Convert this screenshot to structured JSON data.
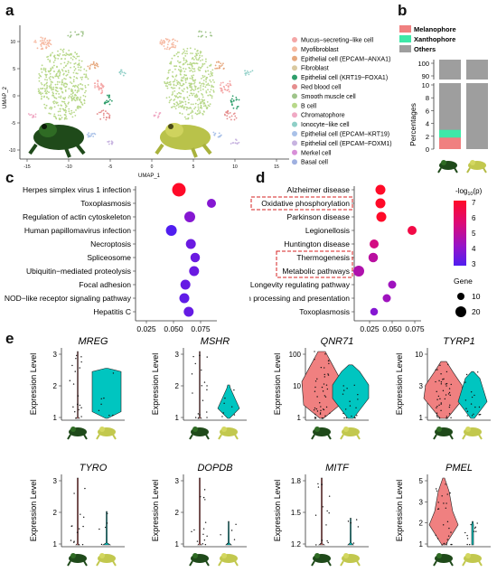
{
  "panels": {
    "a": "a",
    "b": "b",
    "c": "c",
    "d": "d",
    "e": "e"
  },
  "umap": {
    "xlabel": "UMAP_1",
    "ylabel": "UMAP_2",
    "xticks": [
      "-15",
      "-10",
      "-5",
      "0",
      "5",
      "10",
      "15"
    ],
    "yticks": [
      "-10",
      "-5",
      "0",
      "5",
      "10"
    ],
    "legend": [
      {
        "label": "Mucus−secreting−like cell",
        "color": "#f4a6a6"
      },
      {
        "label": "Myofibroblast",
        "color": "#f6b8a0"
      },
      {
        "label": "Epithelial cell (EPCAM−ANXA1)",
        "color": "#e6a87e"
      },
      {
        "label": "Fibroblast",
        "color": "#d9c9a0"
      },
      {
        "label": "Epithelial cell (KRT19−FOXA1)",
        "color": "#2e9e6b"
      },
      {
        "label": "Red blood cell",
        "color": "#e58e8e"
      },
      {
        "label": "Smooth muscle cell",
        "color": "#9fc48a"
      },
      {
        "label": "B cell",
        "color": "#b8d88a"
      },
      {
        "label": "Chromatophore",
        "color": "#f0a9c4"
      },
      {
        "label": "Ionocyte−like cell",
        "color": "#8fcfc7"
      },
      {
        "label": "Epithelial cell (EPCAM−KRT19)",
        "color": "#a9c1e8"
      },
      {
        "label": "Epithelial cell (EPCAM−FOXM1)",
        "color": "#c7b3e0"
      },
      {
        "label": "Merkel cell",
        "color": "#d88fd8"
      },
      {
        "label": "Basal cell",
        "color": "#9fb0e0"
      }
    ]
  },
  "chart_data": [
    {
      "type": "bar",
      "panel": "b",
      "ylabel": "Percentages",
      "categories": [
        "dark frog",
        "light frog"
      ],
      "series": [
        {
          "name": "Melanophore",
          "color": "#f08080",
          "values": [
            1.8,
            0
          ]
        },
        {
          "name": "Xanthophore",
          "color": "#3ee8a8",
          "values": [
            1.2,
            0
          ]
        },
        {
          "name": "Others",
          "color": "#9e9e9e",
          "values": [
            97.0,
            100
          ]
        }
      ],
      "yticks_upper": [
        "90",
        "100"
      ],
      "yticks_lower": [
        "0",
        "2",
        "4",
        "6",
        "8",
        "10"
      ]
    },
    {
      "type": "scatter",
      "panel": "c",
      "categories": [
        "Herpes simplex virus 1 infection",
        "Toxoplasmosis",
        "Regulation of actin cytoskeleton",
        "Human papillomavirus infection",
        "Necroptosis",
        "Spliceosome",
        "Ubiquitin−mediated proteolysis",
        "Focal adhesion",
        "NOD−like receptor signaling pathway",
        "Hepatitis C"
      ],
      "x": [
        0.055,
        0.085,
        0.065,
        0.048,
        0.066,
        0.07,
        0.069,
        0.061,
        0.06,
        0.064
      ],
      "neglog10p": [
        7.0,
        4.0,
        4.0,
        3.0,
        3.5,
        3.5,
        3.5,
        3.4,
        3.3,
        3.4
      ],
      "size": [
        20,
        10,
        14,
        14,
        12,
        11,
        12,
        12,
        12,
        12
      ],
      "xticks": [
        "0.025",
        "0.050",
        "0.075"
      ],
      "xlim": [
        0.015,
        0.09
      ]
    },
    {
      "type": "scatter",
      "panel": "d",
      "categories": [
        "Alzheimer disease",
        "Oxidative phosphorylation",
        "Parkinson disease",
        "Legionellosis",
        "Huntington disease",
        "Thermogenesis",
        "Metabolic pathways",
        "Longevity regulating pathway",
        "Antigen processing and presentation",
        "Toxoplasmosis"
      ],
      "x": [
        0.037,
        0.037,
        0.038,
        0.072,
        0.03,
        0.029,
        0.013,
        0.05,
        0.044,
        0.03
      ],
      "neglog10p": [
        7.0,
        7.0,
        7.0,
        6.5,
        5.5,
        5.0,
        4.8,
        4.5,
        4.5,
        4.0
      ],
      "size": [
        12,
        12,
        12,
        10,
        10,
        11,
        14,
        8,
        8,
        7
      ],
      "xticks": [
        "0.025",
        "0.050",
        "0.075"
      ],
      "xlim": [
        0.008,
        0.082
      ]
    }
  ],
  "colorbar": {
    "title": "-log",
    "title_sub": "10",
    "title_tail": "(p)",
    "ticks": [
      "7",
      "6",
      "5",
      "4",
      "3"
    ]
  },
  "gene_legend": {
    "title": "Gene",
    "items": [
      "10",
      "20"
    ]
  },
  "boxes_d": [
    "Oxidative phosphorylation",
    "Metabolic pathways"
  ],
  "violin": {
    "ylabel": "Expression Level",
    "genes": [
      {
        "name": "MREG",
        "yticks": [
          "1",
          "2",
          "3"
        ],
        "colorA": "#f08080",
        "colorB": "#00c5c0"
      },
      {
        "name": "MSHR",
        "yticks": [
          "1",
          "2",
          "3"
        ],
        "colorA": "#f08080",
        "colorB": "#00c5c0"
      },
      {
        "name": "QNR71",
        "yticks": [
          "1",
          "10",
          "100"
        ],
        "colorA": "#f08080",
        "colorB": "#00c5c0"
      },
      {
        "name": "TYRP1",
        "yticks": [
          "1",
          "3",
          "10"
        ],
        "colorA": "#f08080",
        "colorB": "#00c5c0"
      },
      {
        "name": "TYRO",
        "yticks": [
          "1",
          "2",
          "3"
        ],
        "colorA": "#f08080",
        "colorB": "#00c5c0"
      },
      {
        "name": "DOPDB",
        "yticks": [
          "1",
          "2",
          "3"
        ],
        "colorA": "#f08080",
        "colorB": "#00c5c0"
      },
      {
        "name": "MITF",
        "yticks": [
          "1.2",
          "1.5",
          "1.8"
        ],
        "colorA": "#f08080",
        "colorB": "#00c5c0"
      },
      {
        "name": "PMEL",
        "yticks": [
          "1",
          "2",
          "3",
          "5"
        ],
        "colorA": "#f08080",
        "colorB": "#00c5c0"
      }
    ]
  }
}
